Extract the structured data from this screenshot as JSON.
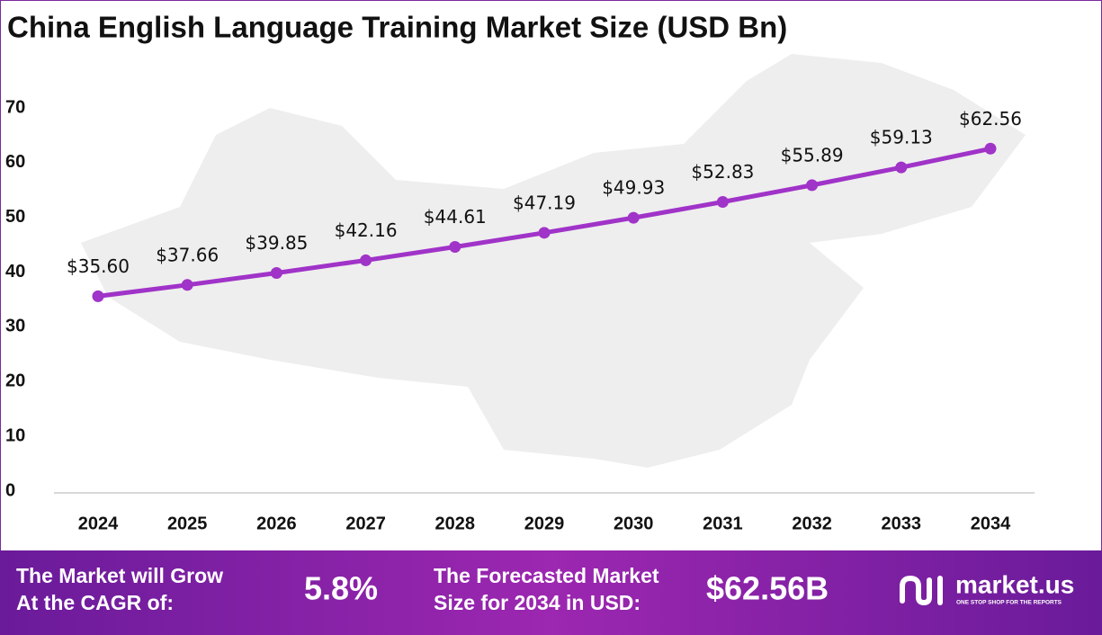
{
  "chart_data": {
    "type": "line",
    "title": "China English Language Training Market Size (USD Bn)",
    "categories": [
      "2024",
      "2025",
      "2026",
      "2027",
      "2028",
      "2029",
      "2030",
      "2031",
      "2032",
      "2033",
      "2034"
    ],
    "values": [
      35.6,
      37.66,
      39.85,
      42.16,
      44.61,
      47.19,
      49.93,
      52.83,
      55.89,
      59.13,
      62.56
    ],
    "value_labels": [
      "$35.60",
      "$37.66",
      "$39.85",
      "$42.16",
      "$44.61",
      "$47.19",
      "$49.93",
      "$52.83",
      "$55.89",
      "$59.13",
      "$62.56"
    ],
    "color": "#a033c8",
    "ylim": [
      0,
      70
    ],
    "yticks": [
      0,
      10,
      20,
      30,
      40,
      50,
      60,
      70
    ],
    "grid": false
  },
  "footer": {
    "cagr_label": [
      "The Market will Grow",
      "At the CAGR of:"
    ],
    "cagr_value": "5.8%",
    "forecast_label": [
      "The Forecasted Market",
      "Size for 2034 in USD:"
    ],
    "forecast_value": "$62.56B",
    "brand": "market.us",
    "tagline": "ONE STOP SHOP FOR THE REPORTS"
  }
}
